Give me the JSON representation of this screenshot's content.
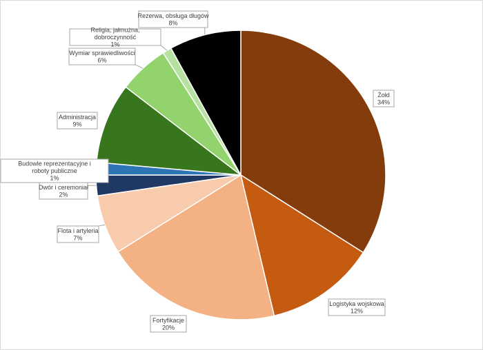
{
  "chart_data": {
    "type": "pie",
    "title": "",
    "start_angle_deg": 0,
    "direction": "clockwise",
    "legend": "none",
    "slices": [
      {
        "name": "Żołd",
        "label": "34%",
        "value": 34.0,
        "color": "#843C0C"
      },
      {
        "name": "Logistyka wojskowa",
        "label": "12%",
        "value": 12.3,
        "color": "#C55A11"
      },
      {
        "name": "Fortyfikacje",
        "label": "20%",
        "value": 19.8,
        "color": "#F4B183"
      },
      {
        "name": "Flota i artyleria",
        "label": "7%",
        "value": 6.6,
        "color": "#F8CBAD"
      },
      {
        "name": "Dwór i ceremoniał",
        "label": "2%",
        "value": 2.3,
        "color": "#1F3864"
      },
      {
        "name": "Budowle reprezentacyjne i roboty publiczne",
        "label": "1%",
        "value": 1.4,
        "color": "#2E75B6"
      },
      {
        "name": "Administracja",
        "label": "9%",
        "value": 9.0,
        "color": "#38761D"
      },
      {
        "name": "Wymiar sprawiedliwości",
        "label": "6%",
        "value": 5.6,
        "color": "#92D36E"
      },
      {
        "name": "Religia, jałmużna, dobroczynność",
        "label": "1%",
        "value": 1.0,
        "color": "#B7E1A1"
      },
      {
        "name": "Rezerwa, obsługa długów",
        "label": "8%",
        "value": 8.0,
        "color": "#000000"
      }
    ]
  }
}
